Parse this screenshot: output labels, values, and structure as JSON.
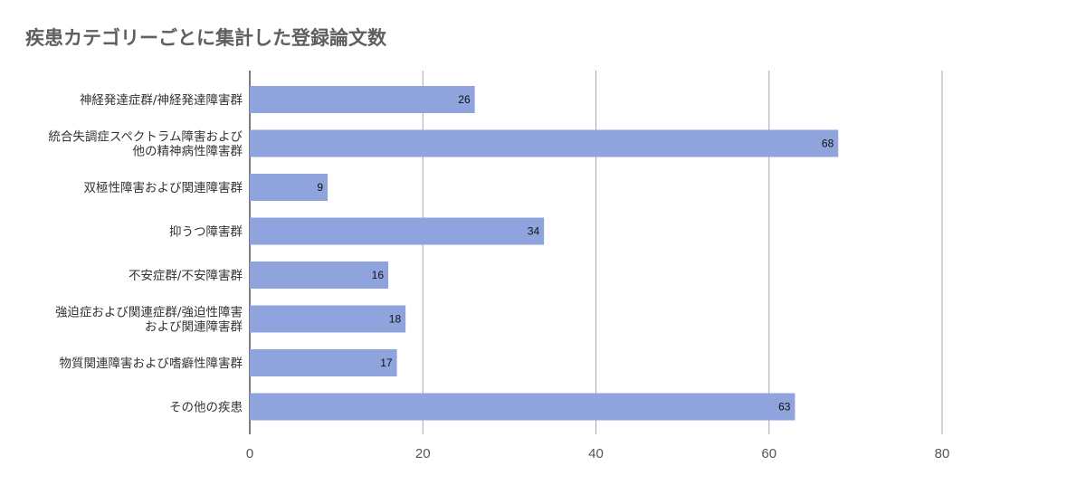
{
  "chart_data": {
    "type": "bar",
    "orientation": "horizontal",
    "title": "疾患カテゴリーごとに集計した登録論文数",
    "categories": [
      [
        "神経発達症群/神経発達障害群"
      ],
      [
        "統合失調症スペクトラム障害および",
        "他の精神病性障害群"
      ],
      [
        "双極性障害および関連障害群"
      ],
      [
        "抑うつ障害群"
      ],
      [
        "不安症群/不安障害群"
      ],
      [
        "強迫症および関連症群/強迫性障害",
        "および関連障害群"
      ],
      [
        "物質関連障害および嗜癖性障害群"
      ],
      [
        "その他の疾患"
      ]
    ],
    "values": [
      26,
      68,
      9,
      34,
      16,
      18,
      17,
      63
    ],
    "xlim": [
      0,
      80
    ],
    "xticks": [
      0,
      20,
      40,
      60,
      80
    ],
    "grid": true,
    "bar_color": "#8fa3dd",
    "data_labels": true,
    "xlabel": "",
    "ylabel": ""
  }
}
